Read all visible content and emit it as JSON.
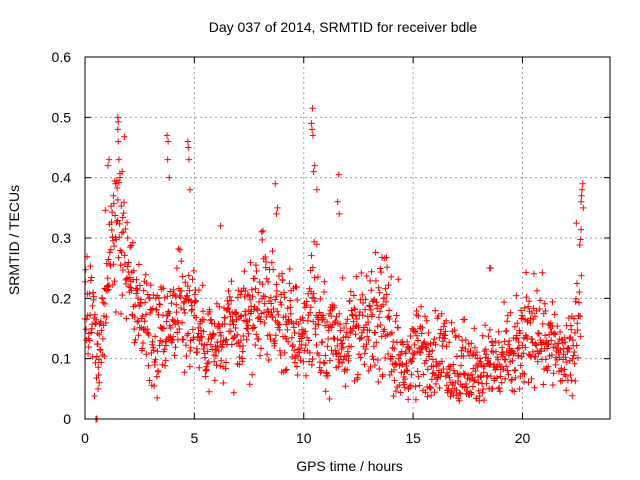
{
  "chart_data": {
    "type": "scatter",
    "title": "Day 037 of 2014, SRMTID for receiver bdle",
    "xlabel": "GPS time / hours",
    "ylabel": "SRMTID / TECUs",
    "xlim": [
      0,
      24
    ],
    "ylim": [
      0,
      0.6
    ],
    "xticks": [
      0,
      5,
      10,
      15,
      20
    ],
    "xtick_labels": [
      "0",
      "5",
      "10",
      "15",
      "20"
    ],
    "yticks": [
      0,
      0.1,
      0.2,
      0.3,
      0.4,
      0.5,
      0.6
    ],
    "ytick_labels": [
      "0",
      "0.1",
      "0.2",
      "0.3",
      "0.4",
      "0.5",
      "0.6"
    ],
    "grid": true,
    "marker": "+",
    "series": [
      {
        "name": "SRMTID",
        "color": "#ff0000",
        "profile": [
          [
            0.0,
            0.18
          ],
          [
            0.3,
            0.17
          ],
          [
            0.6,
            0.1
          ],
          [
            0.9,
            0.18
          ],
          [
            1.2,
            0.3
          ],
          [
            1.5,
            0.34
          ],
          [
            1.8,
            0.3
          ],
          [
            2.2,
            0.2
          ],
          [
            2.6,
            0.19
          ],
          [
            3.0,
            0.16
          ],
          [
            3.5,
            0.15
          ],
          [
            4.0,
            0.17
          ],
          [
            4.5,
            0.18
          ],
          [
            5.0,
            0.17
          ],
          [
            5.5,
            0.13
          ],
          [
            6.0,
            0.12
          ],
          [
            6.5,
            0.14
          ],
          [
            7.0,
            0.15
          ],
          [
            7.5,
            0.17
          ],
          [
            8.0,
            0.19
          ],
          [
            8.5,
            0.18
          ],
          [
            9.0,
            0.16
          ],
          [
            9.5,
            0.14
          ],
          [
            10.0,
            0.14
          ],
          [
            10.4,
            0.2
          ],
          [
            10.8,
            0.13
          ],
          [
            11.3,
            0.14
          ],
          [
            11.8,
            0.13
          ],
          [
            12.3,
            0.15
          ],
          [
            12.8,
            0.14
          ],
          [
            13.3,
            0.16
          ],
          [
            13.8,
            0.17
          ],
          [
            14.2,
            0.1
          ],
          [
            14.6,
            0.09
          ],
          [
            15.0,
            0.1
          ],
          [
            15.5,
            0.11
          ],
          [
            16.0,
            0.11
          ],
          [
            16.5,
            0.1
          ],
          [
            17.0,
            0.09
          ],
          [
            17.5,
            0.07
          ],
          [
            18.0,
            0.08
          ],
          [
            18.5,
            0.09
          ],
          [
            19.0,
            0.09
          ],
          [
            19.5,
            0.1
          ],
          [
            20.0,
            0.12
          ],
          [
            20.5,
            0.15
          ],
          [
            21.0,
            0.14
          ],
          [
            21.5,
            0.12
          ],
          [
            22.0,
            0.1
          ],
          [
            22.3,
            0.09
          ],
          [
            22.5,
            0.2
          ],
          [
            22.7,
            0.26
          ]
        ],
        "spikes": [
          [
            1.5,
            0.5
          ],
          [
            1.5,
            0.48
          ],
          [
            1.52,
            0.46
          ],
          [
            1.55,
            0.43
          ],
          [
            1.1,
            0.43
          ],
          [
            1.05,
            0.42
          ],
          [
            1.7,
            0.41
          ],
          [
            1.6,
            0.4
          ],
          [
            3.75,
            0.47
          ],
          [
            3.8,
            0.46
          ],
          [
            3.78,
            0.43
          ],
          [
            3.85,
            0.4
          ],
          [
            4.7,
            0.46
          ],
          [
            4.72,
            0.45
          ],
          [
            4.75,
            0.43
          ],
          [
            4.8,
            0.38
          ],
          [
            6.2,
            0.32
          ],
          [
            8.7,
            0.39
          ],
          [
            8.8,
            0.35
          ],
          [
            8.75,
            0.34
          ],
          [
            10.4,
            0.515
          ],
          [
            10.35,
            0.49
          ],
          [
            10.38,
            0.48
          ],
          [
            10.42,
            0.47
          ],
          [
            10.5,
            0.42
          ],
          [
            10.45,
            0.41
          ],
          [
            10.6,
            0.38
          ],
          [
            11.6,
            0.405
          ],
          [
            11.55,
            0.36
          ],
          [
            11.62,
            0.34
          ],
          [
            18.5,
            0.25
          ],
          [
            18.55,
            0.25
          ],
          [
            22.75,
            0.39
          ],
          [
            22.72,
            0.38
          ],
          [
            22.7,
            0.37
          ],
          [
            22.68,
            0.36
          ],
          [
            22.78,
            0.35
          ],
          [
            3.3,
            0.035
          ],
          [
            0.6,
            0.05
          ],
          [
            0.65,
            0.06
          ],
          [
            1.3,
            0.37
          ],
          [
            1.4,
            0.39
          ]
        ],
        "zero_points": [
          [
            0.5,
            0.0
          ],
          [
            0.52,
            0.0
          ],
          [
            0.55,
            0.0
          ],
          [
            0.53,
            0.0
          ]
        ]
      }
    ]
  }
}
